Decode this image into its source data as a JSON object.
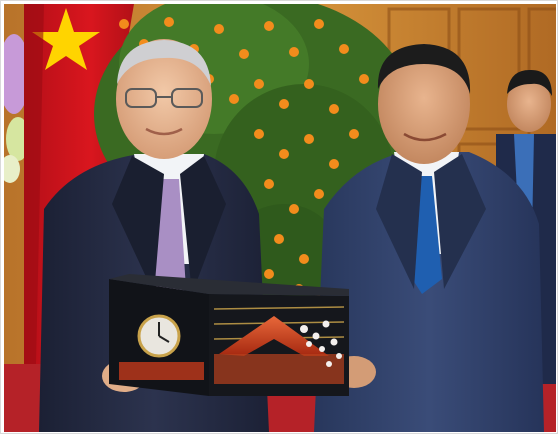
{
  "photo": {
    "subject": "two-men-holding-lacquer-clock-gift",
    "colors": {
      "flag_red": "#d4141c",
      "flag_star": "#ffd400",
      "wood_panel": "#c9852f",
      "wood_dark": "#9a5a1c",
      "tree_green": "#3c6b23",
      "kumquat_orange": "#f08a1a",
      "suit_navy": "#252c44",
      "suit_blue": "#2f4168",
      "shirt_white": "#f2f4f7",
      "tie_lavender": "#a98fc4",
      "tie_blue": "#1f5fb0",
      "gift_black": "#111318",
      "gift_red_mountain": "#c8401c",
      "carpet_red": "#c2282e"
    }
  }
}
